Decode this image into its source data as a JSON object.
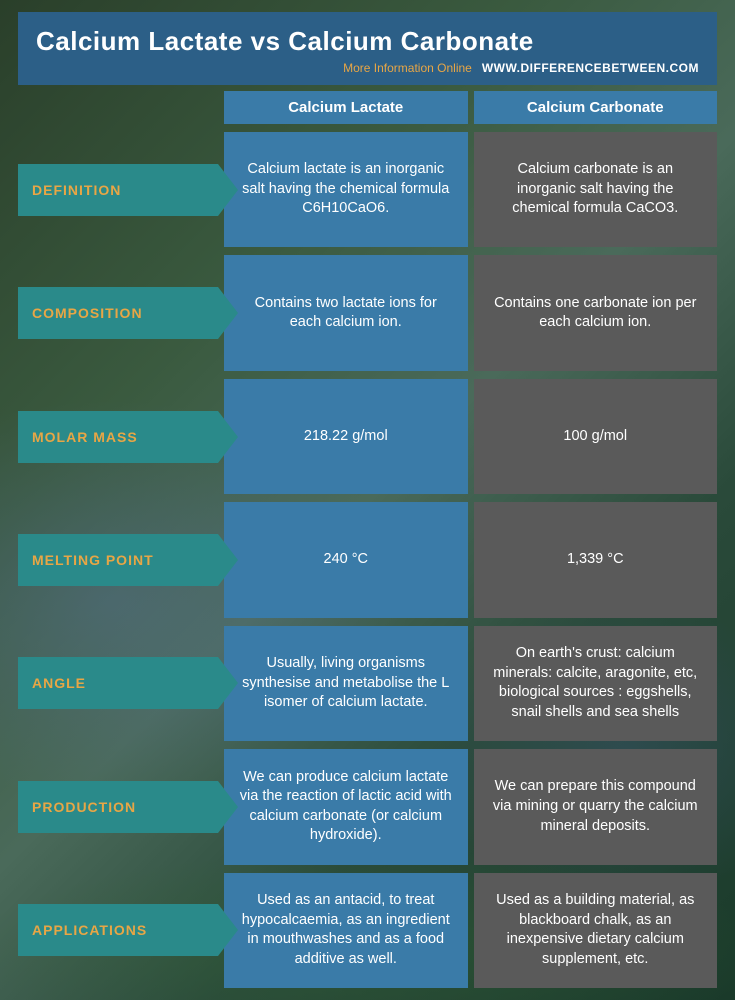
{
  "header": {
    "title": "Calcium Lactate vs Calcium Carbonate",
    "sub_left": "More Information  Online",
    "sub_right": "WWW.DIFFERENCEBETWEEN.COM"
  },
  "columns": {
    "a": "Calcium Lactate",
    "b": "Calcium Carbonate"
  },
  "colors": {
    "header_bg": "#2c5f87",
    "col_head_bg": "#3a7ba8",
    "label_bg": "#2a8a8a",
    "label_text": "#e8a645",
    "cell_a_bg": "#3a7ba8",
    "cell_b_bg": "#5a5a5a",
    "text": "#ffffff"
  },
  "rows": [
    {
      "label": "DEFINITION",
      "a": "Calcium lactate is an inorganic salt having the chemical formula C6H10CaO6.",
      "b": "Calcium carbonate is an inorganic salt having the chemical formula CaCO3."
    },
    {
      "label": "COMPOSITION",
      "a": "Contains two lactate ions for each calcium ion.",
      "b": "Contains one carbonate ion per each calcium ion."
    },
    {
      "label": "MOLAR MASS",
      "a": "218.22 g/mol",
      "b": "100 g/mol"
    },
    {
      "label": "MELTING POINT",
      "a": "240 °C",
      "b": "1,339 °C"
    },
    {
      "label": "ANGLE",
      "a": "Usually, living organisms synthesise and metabolise the L isomer of calcium lactate.",
      "b": "On earth's crust: calcium minerals: calcite, aragonite, etc, biological sources : eggshells, snail shells and sea shells"
    },
    {
      "label": "PRODUCTION",
      "a": "We can produce calcium lactate via the reaction of lactic acid with calcium carbonate (or calcium hydroxide).",
      "b": "We can prepare this compound via mining or quarry the calcium mineral deposits."
    },
    {
      "label": "APPLICATIONS",
      "a": "Used as an antacid, to treat hypocalcaemia, as an ingredient in mouthwashes and as a food additive as well.",
      "b": "Used as a building material, as blackboard chalk, as an inexpensive dietary calcium supplement, etc."
    }
  ]
}
